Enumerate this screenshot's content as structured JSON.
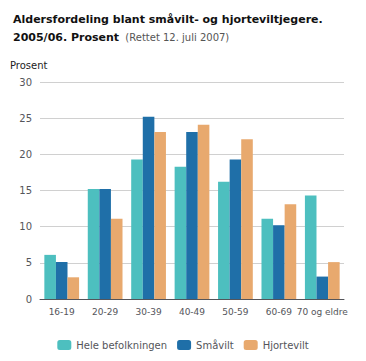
{
  "chart_data": {
    "type": "bar",
    "title": "Aldersfordeling blant småvilt- og hjorteviltjegere.",
    "subtitle": "2005/06. Prosent",
    "annotations": [
      "(Rettet 12. juli 2007)"
    ],
    "ylabel": "Prosent",
    "categories": [
      "16-19",
      "20-29",
      "30-39",
      "40-49",
      "50-59",
      "60-69",
      "70 og eldre"
    ],
    "series": [
      {
        "name": "Hele befolkningen",
        "color": "#4dbfbf",
        "values": [
          6.1,
          15.2,
          19.3,
          18.3,
          16.2,
          11.1,
          14.3
        ]
      },
      {
        "name": "Småvilt",
        "color": "#1f6fa8",
        "values": [
          5.1,
          15.2,
          25.2,
          23.1,
          19.3,
          10.2,
          3.1
        ]
      },
      {
        "name": "Hjortevilt",
        "color": "#e8a96e",
        "values": [
          3.0,
          11.1,
          23.1,
          24.1,
          22.1,
          13.1,
          5.1
        ]
      }
    ],
    "ylim": [
      0,
      30
    ],
    "yticks": [
      0,
      5,
      10,
      15,
      20,
      25,
      30
    ],
    "grid": true,
    "legend": "bottom"
  }
}
